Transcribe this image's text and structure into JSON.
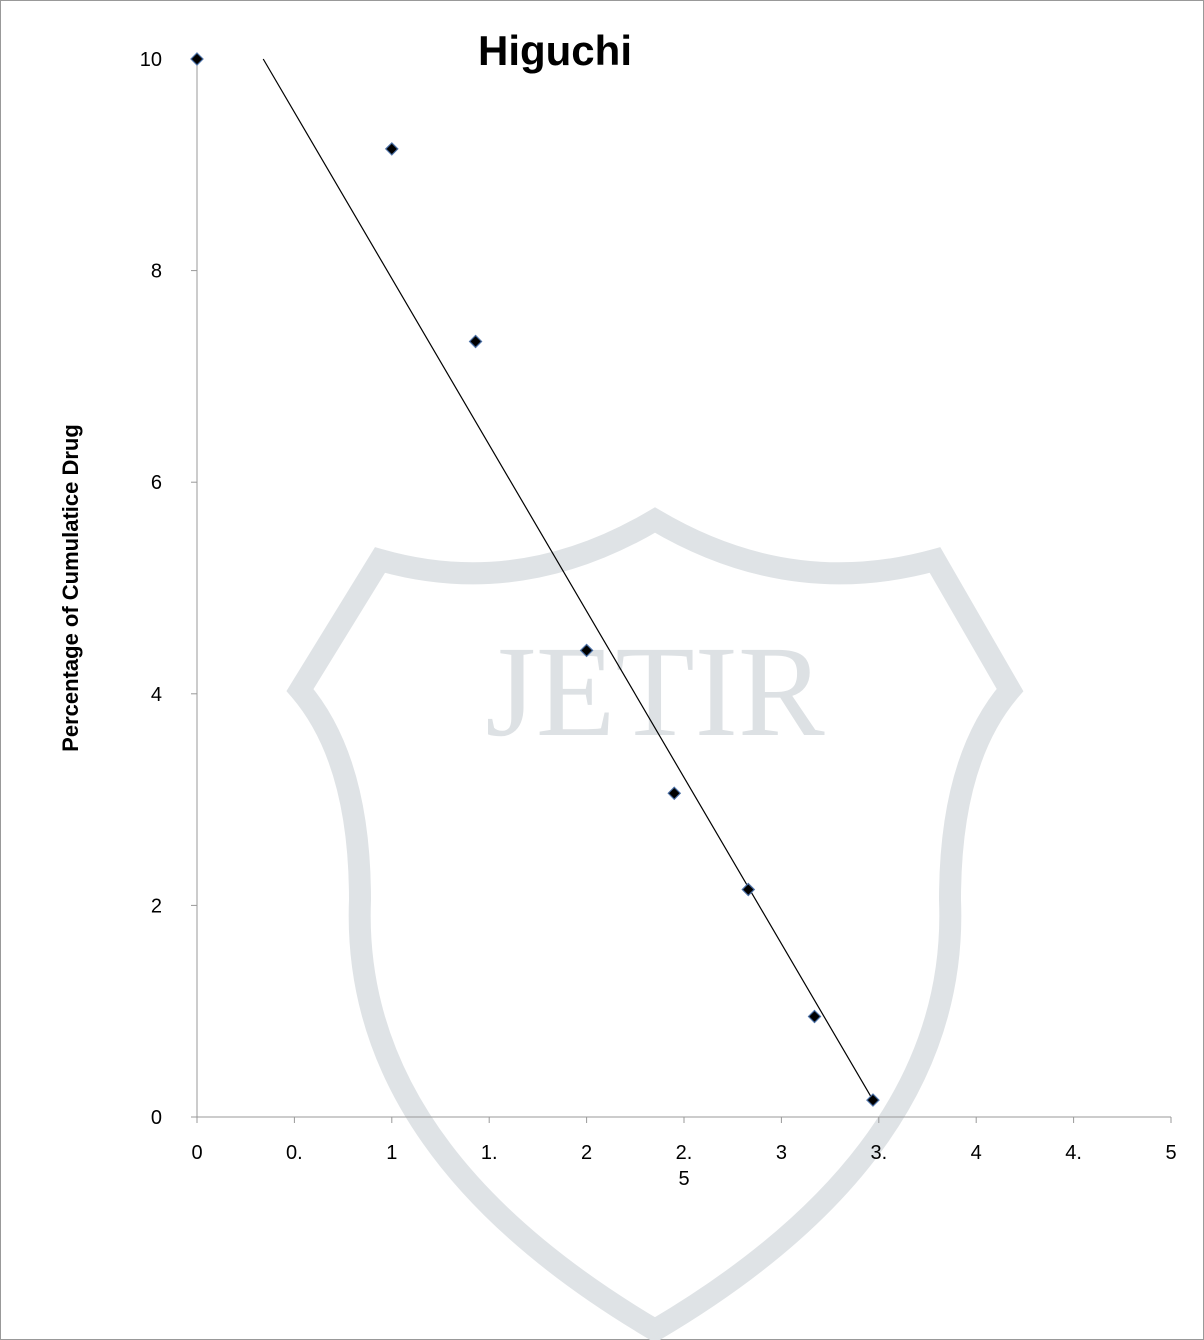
{
  "chart_data": {
    "type": "scatter",
    "title": "Higuchi",
    "ylabel": "Percentage of Cumulatice Drug",
    "watermark": "JETIR",
    "xlim": [
      0,
      5
    ],
    "ylim": [
      0,
      10
    ],
    "xticks": [
      0,
      {
        "value": 0.5,
        "label": "0."
      },
      1,
      {
        "value": 1.5,
        "label": "1."
      },
      2,
      {
        "value": 2.5,
        "label": "2.\n5"
      },
      3,
      {
        "value": 3.5,
        "label": "3."
      },
      4,
      {
        "value": 4.5,
        "label": "4."
      },
      5
    ],
    "yticks": [
      0,
      2,
      4,
      6,
      8,
      10
    ],
    "series": [
      {
        "color": "#000000",
        "x": [
          0,
          1.0,
          1.43,
          2.0,
          2.45,
          2.83,
          3.17,
          3.47
        ],
        "values": [
          10,
          9.15,
          7.33,
          4.41,
          3.06,
          2.15,
          0.95,
          0.16
        ]
      }
    ],
    "trendline": {
      "color": "#000000",
      "x": [
        0.34,
        3.47
      ],
      "values": [
        10,
        0.16
      ]
    }
  }
}
